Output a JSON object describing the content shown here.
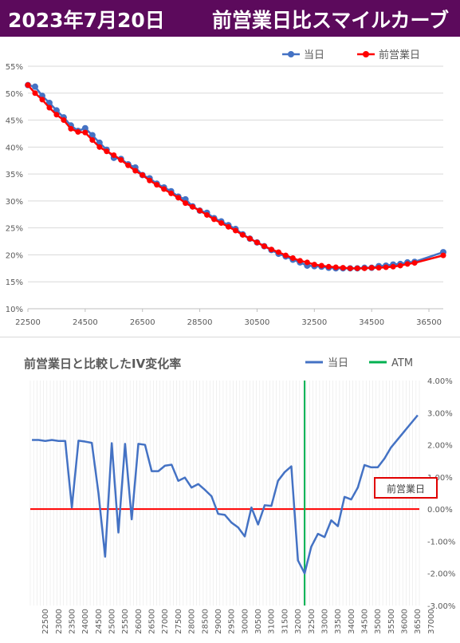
{
  "header": {
    "date": "2023年7月20日",
    "title": "前営業日比スマイルカーブ"
  },
  "chart_data": [
    {
      "type": "line",
      "legend": [
        "当日",
        "前営業日"
      ],
      "legend_position": "top-right",
      "colors": [
        "#4472c4",
        "#ff0000"
      ],
      "x_ticks": [
        "22500",
        "24500",
        "26500",
        "28500",
        "30500",
        "32500",
        "34500",
        "36500"
      ],
      "y_ticks": [
        "10%",
        "15%",
        "20%",
        "25%",
        "30%",
        "35%",
        "40%",
        "45%",
        "50%",
        "55%"
      ],
      "xlim": [
        22500,
        37000
      ],
      "ylim": [
        10,
        55
      ],
      "series": [
        {
          "name": "当日",
          "x": [
            22500,
            22750,
            23000,
            23250,
            23500,
            23750,
            24000,
            24250,
            24500,
            24750,
            25000,
            25250,
            25500,
            25750,
            26000,
            26250,
            26500,
            26750,
            27000,
            27250,
            27500,
            27750,
            28000,
            28250,
            28500,
            28750,
            29000,
            29250,
            29500,
            29750,
            30000,
            30250,
            30500,
            30750,
            31000,
            31250,
            31500,
            31750,
            32000,
            32250,
            32500,
            32750,
            33000,
            33250,
            33500,
            33750,
            34000,
            34250,
            34500,
            34750,
            35000,
            35250,
            35500,
            35750,
            36000,
            37000
          ],
          "y": [
            51.5,
            51.2,
            49.5,
            48.2,
            46.8,
            45.5,
            44.0,
            43.0,
            43.5,
            42.2,
            40.8,
            39.5,
            38.0,
            37.8,
            36.8,
            36.2,
            34.8,
            34.2,
            33.2,
            32.5,
            31.8,
            30.8,
            30.3,
            29.0,
            28.2,
            27.8,
            26.8,
            26.2,
            25.5,
            24.8,
            23.8,
            23.0,
            22.3,
            21.6,
            20.9,
            20.2,
            19.7,
            19.1,
            18.6,
            18.0,
            17.9,
            17.8,
            17.6,
            17.5,
            17.5,
            17.5,
            17.5,
            17.6,
            17.6,
            17.9,
            18.0,
            18.2,
            18.3,
            18.6,
            18.7,
            20.5
          ]
        },
        {
          "name": "前営業日",
          "x": [
            22500,
            22750,
            23000,
            23250,
            23500,
            23750,
            24000,
            24250,
            24500,
            24750,
            25000,
            25250,
            25500,
            25750,
            26000,
            26250,
            26500,
            26750,
            27000,
            27250,
            27500,
            27750,
            28000,
            28250,
            28500,
            28750,
            29000,
            29250,
            29500,
            29750,
            30000,
            30250,
            30500,
            30750,
            31000,
            31250,
            31500,
            31750,
            32000,
            32250,
            32500,
            32750,
            33000,
            33250,
            33500,
            33750,
            34000,
            34250,
            34500,
            34750,
            35000,
            35250,
            35500,
            35750,
            36000,
            37000
          ],
          "y": [
            51.5,
            50.0,
            48.8,
            47.3,
            46.0,
            45.0,
            43.4,
            42.8,
            42.7,
            41.3,
            40.0,
            39.2,
            38.5,
            37.6,
            36.6,
            35.6,
            34.8,
            33.8,
            33.0,
            32.2,
            31.4,
            30.6,
            29.6,
            28.9,
            28.2,
            27.4,
            26.6,
            25.9,
            25.2,
            24.5,
            23.7,
            23.0,
            22.3,
            21.6,
            21.0,
            20.5,
            19.9,
            19.4,
            18.9,
            18.6,
            18.2,
            18.0,
            17.8,
            17.7,
            17.6,
            17.5,
            17.5,
            17.5,
            17.6,
            17.6,
            17.7,
            17.8,
            18.0,
            18.3,
            18.5,
            19.9
          ]
        }
      ]
    },
    {
      "type": "line",
      "title": "前営業日と比較したIV変化率",
      "legend": [
        "当日",
        "ATM"
      ],
      "legend_position": "top-right",
      "colors": [
        "#4472c4",
        "#00b050",
        "#ff0000"
      ],
      "y_ticks": [
        "4.00%",
        "3.00%",
        "2.00%",
        "1.00%",
        "0.00%",
        "-1.00%",
        "-2.00%",
        "-3.00%"
      ],
      "ylim": [
        -3,
        4
      ],
      "categories": [
        "22500",
        "22625",
        "22750",
        "22875",
        "23000",
        "23125",
        "23250",
        "23375",
        "23500",
        "23625",
        "23750",
        "23875",
        "24000",
        "24125",
        "24250",
        "24375",
        "24500",
        "24625",
        "24750",
        "24875",
        "25000",
        "25125",
        "25250",
        "25375",
        "25500",
        "25625",
        "25750",
        "25875",
        "26000",
        "26125",
        "26250",
        "26375",
        "26500",
        "26625",
        "26750",
        "26875",
        "27000",
        "27125",
        "27250",
        "27375",
        "27500",
        "27625",
        "27750",
        "27875",
        "28000",
        "28125",
        "28250",
        "28375",
        "28500",
        "28625",
        "28750",
        "28875",
        "29000",
        "29125",
        "29250",
        "29375",
        "29500",
        "29625",
        "29750",
        "29875",
        "30000",
        "30125",
        "30250",
        "30375",
        "30500",
        "30625",
        "30750",
        "30875",
        "31000",
        "31125",
        "31250",
        "31375",
        "31500",
        "31625",
        "31750",
        "31875",
        "32000",
        "32125",
        "32250",
        "32375",
        "32500",
        "32625",
        "32750",
        "32875",
        "33000",
        "33125",
        "33250",
        "33375",
        "33500",
        "33625",
        "33750",
        "33875",
        "34000",
        "34125",
        "34250",
        "34375",
        "34500",
        "34625",
        "34750",
        "34875",
        "35000",
        "35125",
        "35250",
        "35375",
        "35500",
        "35625",
        "35750",
        "35875",
        "36000",
        "36125",
        "36250",
        "36375",
        "36500",
        "36625",
        "36750",
        "36875",
        "37000"
      ],
      "x_tick_labels": [
        "22500",
        "23000",
        "23500",
        "24000",
        "24500",
        "25000",
        "25500",
        "26000",
        "26500",
        "27000",
        "27500",
        "28000",
        "28500",
        "29000",
        "29500",
        "30000",
        "30500",
        "31000",
        "31500",
        "32000",
        "32500",
        "33000",
        "33500",
        "34000",
        "34500",
        "35000",
        "35500",
        "36000",
        "36500",
        "37000"
      ],
      "series": [
        {
          "name": "当日",
          "x": [
            22500,
            22750,
            23000,
            23250,
            23500,
            23750,
            24000,
            24250,
            24500,
            24750,
            25000,
            25250,
            25500,
            25750,
            26000,
            26250,
            26500,
            26750,
            27000,
            27250,
            27500,
            27750,
            28000,
            28250,
            28500,
            28750,
            29000,
            29250,
            29500,
            29750,
            30000,
            30250,
            30500,
            30750,
            31000,
            31250,
            31500,
            31750,
            32000,
            32250,
            32500,
            32750,
            33000,
            33250,
            33500,
            33750,
            34000,
            34250,
            34500,
            34750,
            35000,
            35250,
            35500,
            35750,
            36000,
            37000
          ],
          "y": [
            2.15,
            2.15,
            2.12,
            2.15,
            2.12,
            2.12,
            0.05,
            2.13,
            2.1,
            2.06,
            0.5,
            -1.48,
            2.05,
            -0.73,
            2.03,
            -0.32,
            2.03,
            2.0,
            1.18,
            1.18,
            1.35,
            1.38,
            0.88,
            0.98,
            0.67,
            0.78,
            0.6,
            0.4,
            -0.15,
            -0.18,
            -0.42,
            -0.57,
            -0.85,
            0.05,
            -0.48,
            0.12,
            0.1,
            0.88,
            1.15,
            1.33,
            -1.6,
            -2.0,
            -1.17,
            -0.77,
            -0.87,
            -0.35,
            -0.53,
            0.38,
            0.3,
            0.67,
            1.37,
            1.3,
            1.3,
            1.57,
            1.92,
            2.92
          ]
        },
        {
          "name": "ATM",
          "x": [
            32750,
            32750
          ],
          "y": [
            -3,
            4
          ]
        },
        {
          "x": [
            22500,
            37000
          ],
          "y": [
            0,
            0
          ]
        }
      ],
      "annotation": "前営業日"
    }
  ]
}
